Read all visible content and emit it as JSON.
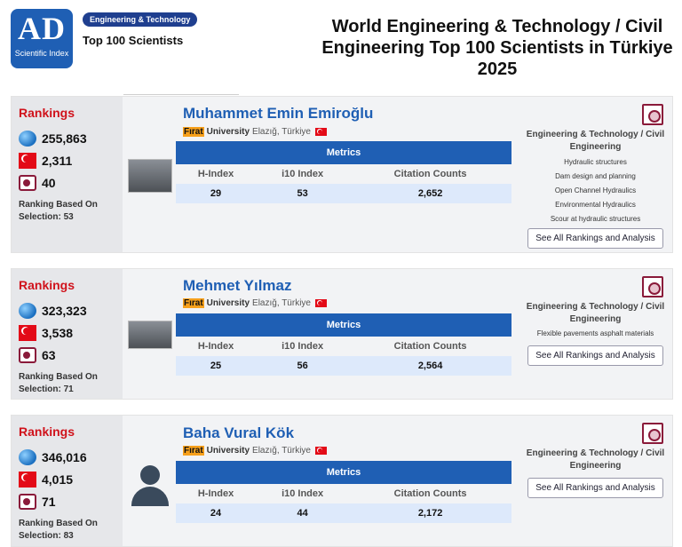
{
  "header": {
    "logo_letters": "AD",
    "logo_caption": "Scientific Index",
    "category_badge": "Engineering & Technology",
    "subtitle": "Top 100 Scientists",
    "title": "World Engineering & Technology / Civil Engineering Top 100 Scientists in Türkiye 2025"
  },
  "common": {
    "rankings_label": "Rankings",
    "metrics_label": "Metrics",
    "col_h": "H-Index",
    "col_i10": "i10 Index",
    "col_cit": "Citation Counts",
    "see_all": "See All Rankings and Analysis",
    "field": "Engineering & Technology / Civil Engineering",
    "highlight": "Fırat",
    "university": "University",
    "location": "Elazığ, Türkiye"
  },
  "scientists": [
    {
      "name": "Muhammet Emin Emiroğlu",
      "world_rank": "255,863",
      "country_rank": "2,311",
      "uni_rank": "40",
      "basis": "Ranking Based On Selection: 53",
      "h_index": "29",
      "i10_index": "53",
      "citations": "2,652",
      "topics": [
        "Hydraulic structures",
        "Dam design and planning",
        "Open Channel Hydraulics",
        "Environmental Hydraulics",
        "Scour at hydraulic structures"
      ]
    },
    {
      "name": "Mehmet Yılmaz",
      "world_rank": "323,323",
      "country_rank": "3,538",
      "uni_rank": "63",
      "basis": "Ranking Based On Selection: 71",
      "h_index": "25",
      "i10_index": "56",
      "citations": "2,564",
      "topics_inline": "Flexible pavements  asphalt materials"
    },
    {
      "name": "Baha Vural Kök",
      "world_rank": "346,016",
      "country_rank": "4,015",
      "uni_rank": "71",
      "basis": "Ranking Based On Selection: 83",
      "h_index": "24",
      "i10_index": "44",
      "citations": "2,172"
    }
  ]
}
